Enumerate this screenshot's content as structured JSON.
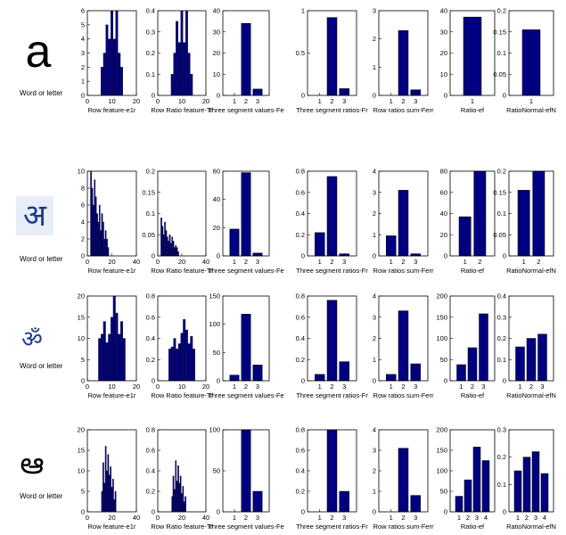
{
  "row_label": "Word or letter",
  "rows": [
    {
      "glyph": "a"
    },
    {
      "glyph": "अ"
    },
    {
      "glyph": "ॐ"
    },
    {
      "glyph": "ఆ"
    }
  ],
  "colors": {
    "bar": "#000080",
    "bar_edge": "#000000",
    "axis": "#000000",
    "glyph_tile_row2": "#e8eef8"
  },
  "chart_data": [
    {
      "row": 1,
      "type": "bar",
      "xlabel": "Row feature-e1r",
      "xlim": [
        0,
        20
      ],
      "ylim": [
        0,
        6
      ],
      "xticks": [
        0,
        10,
        20
      ],
      "yticks": [
        0,
        1,
        2,
        3,
        4,
        5,
        6
      ],
      "x": [
        6,
        7,
        8,
        9,
        10,
        11,
        12,
        13,
        14
      ],
      "values": [
        2,
        3,
        5,
        4,
        6,
        4,
        6,
        3,
        2
      ]
    },
    {
      "row": 1,
      "type": "bar",
      "xlabel": "Row Ratio feature-Tr",
      "xlim": [
        0,
        20
      ],
      "ylim": [
        0,
        0.4
      ],
      "xticks": [
        0,
        10,
        20
      ],
      "yticks": [
        0,
        0.1,
        0.2,
        0.3,
        0.4
      ],
      "x": [
        6,
        7,
        8,
        9,
        10,
        11,
        12,
        13,
        14
      ],
      "values": [
        0.1,
        0.2,
        0.35,
        0.25,
        0.4,
        0.25,
        0.4,
        0.2,
        0.1
      ]
    },
    {
      "row": 1,
      "type": "bar",
      "xlabel": "Three segment values-Fe",
      "xlim": [
        0,
        4
      ],
      "ylim": [
        0,
        40
      ],
      "xticks": [
        1,
        2,
        3
      ],
      "yticks": [
        0,
        10,
        20,
        30,
        40
      ],
      "categories": [
        "1",
        "2",
        "3"
      ],
      "values": [
        0,
        34,
        3
      ]
    },
    {
      "row": 1,
      "type": "bar",
      "xlabel": "Three segment ratios-Fr",
      "xlim": [
        0,
        4
      ],
      "ylim": [
        0,
        1
      ],
      "xticks": [
        1,
        2,
        3
      ],
      "yticks": [
        0,
        0.5,
        1
      ],
      "categories": [
        "1",
        "2",
        "3"
      ],
      "values": [
        0,
        0.92,
        0.08
      ]
    },
    {
      "row": 1,
      "type": "bar",
      "xlabel": "Row ratios sum-Ferr",
      "xlim": [
        0,
        4
      ],
      "ylim": [
        0,
        3
      ],
      "xticks": [
        1,
        2,
        3
      ],
      "yticks": [
        0,
        1,
        2,
        3
      ],
      "categories": [
        "1",
        "2",
        "3"
      ],
      "values": [
        0,
        2.3,
        0.2
      ]
    },
    {
      "row": 1,
      "type": "bar",
      "xlabel": "Ratio-ef",
      "xlim": [
        0,
        2
      ],
      "ylim": [
        0,
        40
      ],
      "xticks": [
        1
      ],
      "yticks": [
        0,
        10,
        20,
        30,
        40
      ],
      "categories": [
        "1"
      ],
      "values": [
        37
      ]
    },
    {
      "row": 1,
      "type": "bar",
      "xlabel": "RatioNormal-efN",
      "xlim": [
        0,
        2
      ],
      "ylim": [
        0,
        0.2
      ],
      "xticks": [
        1
      ],
      "yticks": [
        0,
        0.05,
        0.1,
        0.15,
        0.2
      ],
      "categories": [
        "1"
      ],
      "values": [
        0.155
      ]
    },
    {
      "row": 2,
      "type": "bar",
      "xlabel": "Row feature-e1r",
      "xlim": [
        0,
        40
      ],
      "ylim": [
        0,
        10
      ],
      "xticks": [
        0,
        20,
        40
      ],
      "yticks": [
        0,
        2,
        4,
        6,
        8,
        10
      ],
      "x": [
        3,
        4,
        5,
        6,
        7,
        8,
        9,
        10,
        11,
        12,
        13,
        14,
        15,
        16,
        17
      ],
      "values": [
        10,
        8,
        6,
        9,
        7,
        5,
        4,
        6,
        3,
        5,
        4,
        2,
        3,
        2,
        1
      ]
    },
    {
      "row": 2,
      "type": "bar",
      "xlabel": "Row Ratio feature-Tr",
      "xlim": [
        0,
        40
      ],
      "ylim": [
        0,
        0.2
      ],
      "xticks": [
        0,
        20,
        40
      ],
      "yticks": [
        0,
        0.05,
        0.1,
        0.15,
        0.2
      ],
      "x": [
        3,
        4,
        5,
        6,
        7,
        8,
        9,
        10,
        11,
        12,
        13,
        14,
        15,
        16,
        17
      ],
      "values": [
        0.09,
        0.07,
        0.05,
        0.08,
        0.06,
        0.045,
        0.035,
        0.05,
        0.03,
        0.045,
        0.035,
        0.02,
        0.025,
        0.02,
        0.01
      ]
    },
    {
      "row": 2,
      "type": "bar",
      "xlabel": "Three segment values-Fe",
      "xlim": [
        0,
        4
      ],
      "ylim": [
        0,
        60
      ],
      "xticks": [
        1,
        2,
        3
      ],
      "yticks": [
        0,
        20,
        40,
        60
      ],
      "categories": [
        "1",
        "2",
        "3"
      ],
      "values": [
        19,
        59,
        2
      ]
    },
    {
      "row": 2,
      "type": "bar",
      "xlabel": "Three segment ratios-Fr",
      "xlim": [
        0,
        4
      ],
      "ylim": [
        0,
        0.8
      ],
      "xticks": [
        1,
        2,
        3
      ],
      "yticks": [
        0,
        0.2,
        0.4,
        0.6,
        0.8
      ],
      "categories": [
        "1",
        "2",
        "3"
      ],
      "values": [
        0.22,
        0.75,
        0.02
      ]
    },
    {
      "row": 2,
      "type": "bar",
      "xlabel": "Row ratios sum-Ferr",
      "xlim": [
        0,
        4
      ],
      "ylim": [
        0,
        4
      ],
      "xticks": [
        1,
        2,
        3
      ],
      "yticks": [
        0,
        1,
        2,
        3,
        4
      ],
      "categories": [
        "1",
        "2",
        "3"
      ],
      "values": [
        0.95,
        3.1,
        0.1
      ]
    },
    {
      "row": 2,
      "type": "bar",
      "xlabel": "Ratio-ef",
      "xlim": [
        0,
        3
      ],
      "ylim": [
        0,
        80
      ],
      "xticks": [
        1,
        2
      ],
      "yticks": [
        0,
        20,
        40,
        60,
        80
      ],
      "categories": [
        "1",
        "2"
      ],
      "values": [
        37,
        80
      ]
    },
    {
      "row": 2,
      "type": "bar",
      "xlabel": "RatioNormal-efN",
      "xlim": [
        0,
        3
      ],
      "ylim": [
        0,
        0.2
      ],
      "xticks": [
        1,
        2
      ],
      "yticks": [
        0,
        0.05,
        0.1,
        0.15,
        0.2
      ],
      "categories": [
        "1",
        "2"
      ],
      "values": [
        0.155,
        0.2
      ]
    },
    {
      "row": 3,
      "type": "bar",
      "xlabel": "Row feature-e1r",
      "xlim": [
        0,
        20
      ],
      "ylim": [
        0,
        20
      ],
      "xticks": [
        0,
        10,
        20
      ],
      "yticks": [
        0,
        5,
        10,
        15,
        20
      ],
      "x": [
        5,
        6,
        7,
        8,
        9,
        10,
        11,
        12,
        13,
        14,
        15
      ],
      "values": [
        10,
        11,
        14,
        9,
        11,
        15,
        20,
        16,
        11,
        14,
        10
      ]
    },
    {
      "row": 3,
      "type": "bar",
      "xlabel": "Row Ratio feature-Tr",
      "xlim": [
        0,
        20
      ],
      "ylim": [
        0,
        0.8
      ],
      "xticks": [
        0,
        10,
        20
      ],
      "yticks": [
        0,
        0.2,
        0.4,
        0.6,
        0.8
      ],
      "x": [
        5,
        6,
        7,
        8,
        9,
        10,
        11,
        12,
        13,
        14,
        15
      ],
      "values": [
        0.3,
        0.32,
        0.4,
        0.3,
        0.35,
        0.45,
        0.58,
        0.48,
        0.35,
        0.42,
        0.3
      ]
    },
    {
      "row": 3,
      "type": "bar",
      "xlabel": "Three segment values-Fe",
      "xlim": [
        0,
        4
      ],
      "ylim": [
        0,
        150
      ],
      "xticks": [
        1,
        2,
        3
      ],
      "yticks": [
        0,
        50,
        100,
        150
      ],
      "categories": [
        "1",
        "2",
        "3"
      ],
      "values": [
        10,
        118,
        28
      ]
    },
    {
      "row": 3,
      "type": "bar",
      "xlabel": "Three segment ratios-Fr",
      "xlim": [
        0,
        4
      ],
      "ylim": [
        0,
        0.8
      ],
      "xticks": [
        1,
        2,
        3
      ],
      "yticks": [
        0,
        0.2,
        0.4,
        0.6,
        0.8
      ],
      "categories": [
        "1",
        "2",
        "3"
      ],
      "values": [
        0.06,
        0.76,
        0.18
      ]
    },
    {
      "row": 3,
      "type": "bar",
      "xlabel": "Row ratios sum-Ferr",
      "xlim": [
        0,
        4
      ],
      "ylim": [
        0,
        4
      ],
      "xticks": [
        1,
        2,
        3
      ],
      "yticks": [
        0,
        1,
        2,
        3,
        4
      ],
      "categories": [
        "1",
        "2",
        "3"
      ],
      "values": [
        0.3,
        3.3,
        0.8
      ]
    },
    {
      "row": 3,
      "type": "bar",
      "xlabel": "Ratio-ef",
      "xlim": [
        0,
        4
      ],
      "ylim": [
        0,
        200
      ],
      "xticks": [
        1,
        2,
        3
      ],
      "yticks": [
        0,
        50,
        100,
        150,
        200
      ],
      "categories": [
        "1",
        "2",
        "3"
      ],
      "values": [
        38,
        78,
        158
      ]
    },
    {
      "row": 3,
      "type": "bar",
      "xlabel": "RatioNormal-efN",
      "xlim": [
        0,
        4
      ],
      "ylim": [
        0,
        0.4
      ],
      "xticks": [
        1,
        2,
        3
      ],
      "yticks": [
        0,
        0.1,
        0.2,
        0.3,
        0.4
      ],
      "categories": [
        "1",
        "2",
        "3"
      ],
      "values": [
        0.16,
        0.2,
        0.22
      ]
    },
    {
      "row": 4,
      "type": "bar",
      "xlabel": "Row feature-e1r",
      "xlim": [
        0,
        40
      ],
      "ylim": [
        0,
        20
      ],
      "xticks": [
        0,
        20,
        40
      ],
      "yticks": [
        0,
        5,
        10,
        15,
        20
      ],
      "x": [
        12,
        13,
        14,
        15,
        16,
        17,
        18,
        19,
        20,
        21,
        22,
        23
      ],
      "values": [
        5,
        12,
        7,
        16,
        10,
        14,
        9,
        11,
        6,
        8,
        3,
        5
      ]
    },
    {
      "row": 4,
      "type": "bar",
      "xlabel": "Row Ratio feature-Tr",
      "xlim": [
        0,
        40
      ],
      "ylim": [
        0,
        0.8
      ],
      "xticks": [
        0,
        20,
        40
      ],
      "yticks": [
        0,
        0.2,
        0.4,
        0.6,
        0.8
      ],
      "x": [
        12,
        13,
        14,
        15,
        16,
        17,
        18,
        19,
        20,
        21,
        22,
        23
      ],
      "values": [
        0.15,
        0.35,
        0.22,
        0.5,
        0.3,
        0.45,
        0.28,
        0.35,
        0.18,
        0.25,
        0.1,
        0.15
      ]
    },
    {
      "row": 4,
      "type": "bar",
      "xlabel": "Three segment values-Fe",
      "xlim": [
        0,
        4
      ],
      "ylim": [
        0,
        100
      ],
      "xticks": [
        1,
        2,
        3
      ],
      "yticks": [
        0,
        50,
        100
      ],
      "categories": [
        "1",
        "2",
        "3"
      ],
      "values": [
        0,
        100,
        25
      ]
    },
    {
      "row": 4,
      "type": "bar",
      "xlabel": "Three segment ratios-Fr",
      "xlim": [
        0,
        4
      ],
      "ylim": [
        0,
        0.8
      ],
      "xticks": [
        1,
        2,
        3
      ],
      "yticks": [
        0,
        0.2,
        0.4,
        0.6,
        0.8
      ],
      "categories": [
        "1",
        "2",
        "3"
      ],
      "values": [
        0,
        0.8,
        0.2
      ]
    },
    {
      "row": 4,
      "type": "bar",
      "xlabel": "Row ratios sum-Ferr",
      "xlim": [
        0,
        4
      ],
      "ylim": [
        0,
        4
      ],
      "xticks": [
        1,
        2,
        3
      ],
      "yticks": [
        0,
        1,
        2,
        3,
        4
      ],
      "categories": [
        "1",
        "2",
        "3"
      ],
      "values": [
        0,
        3.1,
        0.8
      ]
    },
    {
      "row": 4,
      "type": "bar",
      "xlabel": "Ratio-ef",
      "xlim": [
        0,
        5
      ],
      "ylim": [
        0,
        200
      ],
      "xticks": [
        1,
        2,
        3,
        4
      ],
      "yticks": [
        0,
        50,
        100,
        150,
        200
      ],
      "categories": [
        "1",
        "2",
        "3",
        "4"
      ],
      "values": [
        38,
        78,
        158,
        125
      ]
    },
    {
      "row": 4,
      "type": "bar",
      "xlabel": "RatioNormal-efN",
      "xlim": [
        0,
        5
      ],
      "ylim": [
        0,
        0.3
      ],
      "xticks": [
        1,
        2,
        3,
        4
      ],
      "yticks": [
        0,
        0.1,
        0.2,
        0.3
      ],
      "categories": [
        "1",
        "2",
        "3",
        "4"
      ],
      "values": [
        0.15,
        0.2,
        0.22,
        0.14
      ]
    }
  ]
}
